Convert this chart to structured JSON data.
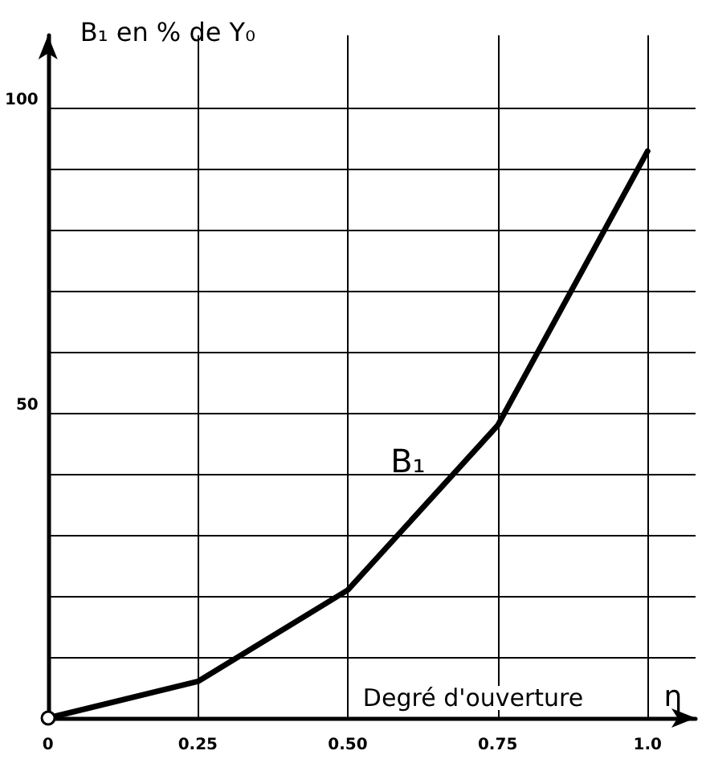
{
  "chart_data": {
    "type": "line",
    "ylabel": "B₁ en % de Y₀",
    "xlabel": "η",
    "annotations": [
      "Degré d'ouverture"
    ],
    "x": [
      0,
      0.25,
      0.5,
      0.75,
      1.0
    ],
    "series": [
      {
        "name": "B₁",
        "color": "#000000",
        "values": [
          0,
          6,
          21,
          48,
          93
        ]
      }
    ],
    "xlim": [
      0,
      1.08
    ],
    "ylim": [
      0,
      112
    ],
    "xticks": [
      0,
      0.25,
      {
        "value": 0.5,
        "label": "0.50"
      },
      0.75,
      {
        "value": 1,
        "label": "1.0"
      }
    ],
    "yticks": [
      {
        "value": 10,
        "label": null
      },
      {
        "value": 20,
        "label": null
      },
      {
        "value": 30,
        "label": null
      },
      {
        "value": 40,
        "label": null
      },
      50,
      {
        "value": 60,
        "label": null
      },
      {
        "value": 70,
        "label": null
      },
      {
        "value": 80,
        "label": null
      },
      {
        "value": 90,
        "label": null
      },
      100
    ],
    "grid": true,
    "marker": "none",
    "line_style": "solid"
  }
}
